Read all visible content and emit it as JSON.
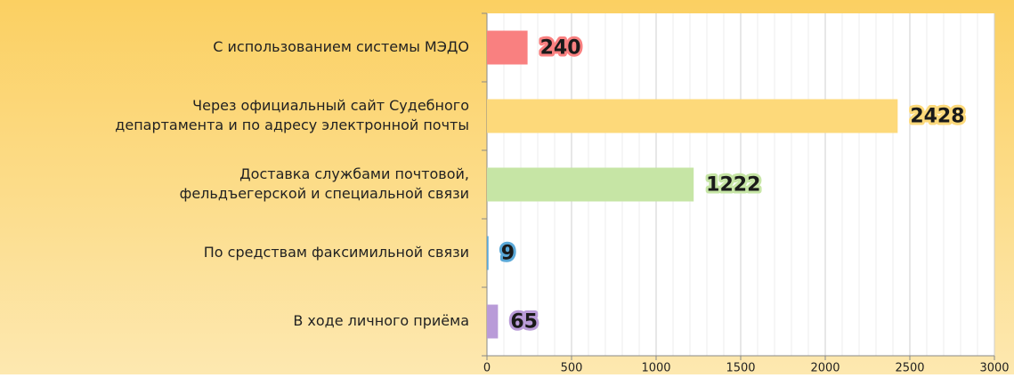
{
  "chart_data": {
    "type": "barh",
    "categories": [
      [
        "С использованием системы МЭДО"
      ],
      [
        "Через официальный сайт Судебного",
        "департамента и по адресу электронной почты"
      ],
      [
        "Доставка службами почтовой,",
        "фельдъегерской и специальной связи"
      ],
      [
        "По средствам факсимильной связи"
      ],
      [
        "В ходе личного приёма"
      ]
    ],
    "values": [
      240,
      2428,
      1222,
      9,
      65
    ],
    "colors": [
      "#f98080",
      "#fdd97a",
      "#c6e5a5",
      "#5aa8d8",
      "#b99bd8"
    ],
    "xlim": [
      0,
      3000
    ],
    "xticks": [
      0,
      500,
      1000,
      1500,
      2000,
      2500,
      3000
    ],
    "grid": true
  }
}
